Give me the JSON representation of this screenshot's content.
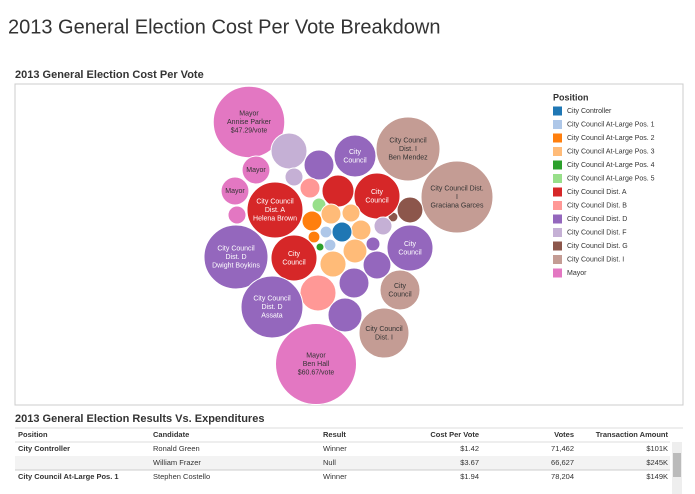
{
  "header": {
    "title": "2013 General Election Cost Per Vote Breakdown"
  },
  "chart_data": {
    "type": "bubble",
    "title": "2013 General Election Cost Per Vote",
    "legend": {
      "title": "Position",
      "position": "right",
      "items": [
        {
          "name": "City Controller",
          "color": "#1f77b4"
        },
        {
          "name": "City Council At-Large Pos. 1",
          "color": "#aec7e8"
        },
        {
          "name": "City Council At-Large Pos. 2",
          "color": "#ff7f0e"
        },
        {
          "name": "City Council At-Large Pos. 3",
          "color": "#ffbb78"
        },
        {
          "name": "City Council At-Large Pos. 4",
          "color": "#2ca02c"
        },
        {
          "name": "City Council At-Large Pos. 5",
          "color": "#98df8a"
        },
        {
          "name": "City Council Dist. A",
          "color": "#d62728"
        },
        {
          "name": "City Council Dist. B",
          "color": "#ff9896"
        },
        {
          "name": "City Council Dist. D",
          "color": "#9467bd"
        },
        {
          "name": "City Council Dist. F",
          "color": "#c5b0d5"
        },
        {
          "name": "City Council Dist. G",
          "color": "#8c564b"
        },
        {
          "name": "City Council Dist. I",
          "color": "#c49c94"
        },
        {
          "name": "Mayor",
          "color": "#e377c2"
        }
      ]
    },
    "bubbles": [
      {
        "label": [
          "Mayor",
          "Annise Parker",
          "$47.29/vote"
        ],
        "value": 47.29,
        "color": "#e377c2"
      },
      {
        "label": [
          "Mayor",
          "Ben Hall",
          "$60.67/vote"
        ],
        "value": 60.67,
        "color": "#e377c2"
      },
      {
        "label": [
          "Mayor"
        ],
        "value": 7.2,
        "color": "#e377c2"
      },
      {
        "label": [
          "Mayor"
        ],
        "value": 7.2,
        "color": "#e377c2"
      },
      {
        "label": null,
        "value": 3.0,
        "color": "#e377c2"
      },
      {
        "label": null,
        "value": 12.0,
        "color": "#c5b0d5"
      },
      {
        "label": null,
        "value": 3.0,
        "color": "#c5b0d5"
      },
      {
        "label": null,
        "value": 8.3,
        "color": "#9467bd"
      },
      {
        "label": [
          "City",
          "Council"
        ],
        "value": 16.3,
        "color": "#9467bd"
      },
      {
        "label": [
          "City Council",
          "Dist. I",
          "Ben Mendez"
        ],
        "value": 37.9,
        "color": "#c49c94"
      },
      {
        "label": [
          "City Council Dist.",
          "I",
          "Graciana Garces"
        ],
        "value": 47.9,
        "color": "#c49c94"
      },
      {
        "label": null,
        "value": 6.2,
        "color": "#8c564b"
      },
      {
        "label": null,
        "value": 0.9,
        "color": "#8c564b"
      },
      {
        "label": [
          "City Council",
          "Dist. A",
          "Helena Brown"
        ],
        "value": 29.0,
        "color": "#d62728"
      },
      {
        "label": [
          "City",
          "Council"
        ],
        "value": 19.6,
        "color": "#d62728"
      },
      {
        "label": null,
        "value": 9.5,
        "color": "#d62728"
      },
      {
        "label": null,
        "value": 3.7,
        "color": "#ff9896"
      },
      {
        "label": null,
        "value": 1.8,
        "color": "#98df8a"
      },
      {
        "label": null,
        "value": 3.7,
        "color": "#ff7f0e"
      },
      {
        "label": null,
        "value": 3.7,
        "color": "#ffbb78"
      },
      {
        "label": null,
        "value": 3.0,
        "color": "#ffbb78"
      },
      {
        "label": null,
        "value": 3.7,
        "color": "#ffbb78"
      },
      {
        "label": null,
        "value": 5.3,
        "color": "#ffbb78"
      },
      {
        "label": null,
        "value": 6.3,
        "color": "#ffbb78"
      },
      {
        "label": null,
        "value": 3.7,
        "color": "#1f77b4"
      },
      {
        "label": null,
        "value": 1.3,
        "color": "#aec7e8"
      },
      {
        "label": null,
        "value": 1.3,
        "color": "#aec7e8"
      },
      {
        "label": null,
        "value": 0.6,
        "color": "#2ca02c"
      },
      {
        "label": null,
        "value": 1.3,
        "color": "#ff7f0e"
      },
      {
        "label": [
          "City Council",
          "Dist. D",
          "Dwight Boykins"
        ],
        "value": 37.9,
        "color": "#9467bd"
      },
      {
        "label": [
          "City",
          "Council"
        ],
        "value": 19.6,
        "color": "#d62728"
      },
      {
        "label": [
          "City",
          "Council"
        ],
        "value": 19.6,
        "color": "#9467bd"
      },
      {
        "label": null,
        "value": 7.2,
        "color": "#9467bd"
      },
      {
        "label": null,
        "value": 1.8,
        "color": "#9467bd"
      },
      {
        "label": null,
        "value": 3.0,
        "color": "#c5b0d5"
      },
      {
        "label": null,
        "value": 12.0,
        "color": "#ff9896"
      },
      {
        "label": null,
        "value": 8.3,
        "color": "#9467bd"
      },
      {
        "label": [
          "City Council",
          "Dist. D",
          "Assata"
        ],
        "value": 35.5,
        "color": "#9467bd"
      },
      {
        "label": null,
        "value": 10.7,
        "color": "#9467bd"
      },
      {
        "label": [
          "City",
          "Council"
        ],
        "value": 14.8,
        "color": "#c49c94"
      },
      {
        "label": [
          "City Council",
          "Dist. I"
        ],
        "value": 23.1,
        "color": "#c49c94"
      }
    ]
  },
  "table": {
    "title": "2013 General Election Results Vs. Expenditures",
    "columns": [
      "Position",
      "Candidate",
      "Result",
      "Cost Per Vote",
      "Votes",
      "Transaction Amount"
    ],
    "rows": [
      [
        "City Controller",
        "Ronald Green",
        "Winner",
        "$1.42",
        "71,462",
        "$101K"
      ],
      [
        null,
        "William Frazer",
        "Null",
        "$3.67",
        "66,627",
        "$245K"
      ],
      [
        "City Council At-Large Pos. 1",
        "Stephen Costello",
        "Winner",
        "$1.94",
        "78,204",
        "$149K"
      ]
    ]
  }
}
